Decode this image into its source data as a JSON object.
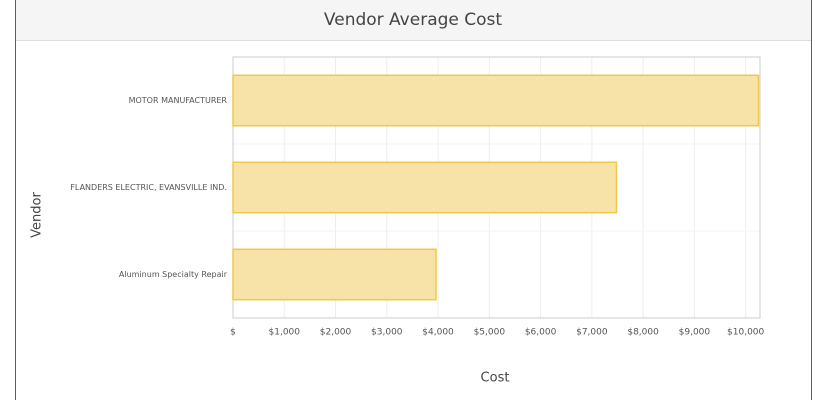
{
  "chart_data": {
    "type": "barh",
    "title": "Vendor Average Cost",
    "xlabel": "Cost",
    "ylabel": "Vendor",
    "categories": [
      "MOTOR MANUFACTURER",
      "FLANDERS ELECTRIC, EVANSVILLE IND.",
      "Aluminum Specialty Repair"
    ],
    "values": [
      10250,
      7480,
      3960
    ],
    "color": "#f7e3a8",
    "edge_color": "#f0c94a",
    "xlim": [
      0,
      10280
    ],
    "xticks": [
      {
        "value": 0,
        "label": "$"
      },
      {
        "value": 1000,
        "label": "$1,000"
      },
      {
        "value": 2000,
        "label": "$2,000"
      },
      {
        "value": 3000,
        "label": "$3,000"
      },
      {
        "value": 4000,
        "label": "$4,000"
      },
      {
        "value": 5000,
        "label": "$5,000"
      },
      {
        "value": 6000,
        "label": "$6,000"
      },
      {
        "value": 7000,
        "label": "$7,000"
      },
      {
        "value": 8000,
        "label": "$8,000"
      },
      {
        "value": 9000,
        "label": "$9,000"
      },
      {
        "value": 10000,
        "label": "$10,000"
      }
    ],
    "grid": true
  }
}
